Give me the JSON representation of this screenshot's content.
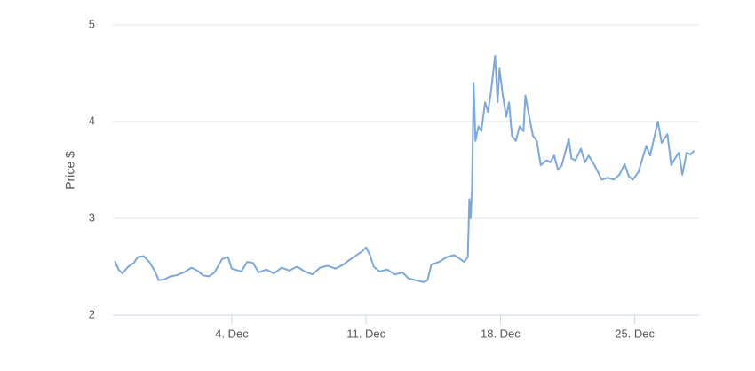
{
  "chart_data": {
    "type": "line",
    "y_label": "Price $",
    "xlim": [
      -2.2,
      28.35
    ],
    "ylim": [
      2,
      5
    ],
    "xticks": [
      {
        "value": 4,
        "label": "4. Dec"
      },
      {
        "value": 11,
        "label": "11. Dec"
      },
      {
        "value": 18,
        "label": "18. Dec"
      },
      {
        "value": 25,
        "label": "25. Dec"
      }
    ],
    "yticks": [
      2,
      3,
      4,
      5
    ],
    "grid": true,
    "series": [
      {
        "color": "#7ca8e0",
        "x": [
          -2.1,
          -1.9,
          -1.7,
          -1.4,
          -1.1,
          -0.9,
          -0.6,
          -0.3,
          0.0,
          0.2,
          0.5,
          0.8,
          1.1,
          1.5,
          1.9,
          2.2,
          2.5,
          2.8,
          3.1,
          3.5,
          3.8,
          4.0,
          4.5,
          4.8,
          5.1,
          5.4,
          5.8,
          6.2,
          6.6,
          7.0,
          7.4,
          7.8,
          8.2,
          8.6,
          9.0,
          9.4,
          9.8,
          10.2,
          10.5,
          10.8,
          11.0,
          11.2,
          11.4,
          11.7,
          12.1,
          12.5,
          12.9,
          13.2,
          13.6,
          14.0,
          14.2,
          14.4,
          14.8,
          15.2,
          15.6,
          15.9,
          16.1,
          16.3,
          16.38,
          16.45,
          16.52,
          16.6,
          16.7,
          16.85,
          17.0,
          17.2,
          17.35,
          17.5,
          17.72,
          17.85,
          17.95,
          18.1,
          18.3,
          18.45,
          18.6,
          18.8,
          19.0,
          19.2,
          19.3,
          19.5,
          19.7,
          19.9,
          20.1,
          20.4,
          20.6,
          20.8,
          21.0,
          21.2,
          21.56,
          21.7,
          21.9,
          22.2,
          22.4,
          22.6,
          22.9,
          23.27,
          23.6,
          23.9,
          24.2,
          24.47,
          24.7,
          24.9,
          25.2,
          25.4,
          25.6,
          25.8,
          26.2,
          26.4,
          26.7,
          26.9,
          27.1,
          27.3,
          27.48,
          27.7,
          27.9,
          28.1
        ],
        "values": [
          2.56,
          2.47,
          2.43,
          2.5,
          2.54,
          2.6,
          2.61,
          2.55,
          2.45,
          2.36,
          2.37,
          2.4,
          2.41,
          2.44,
          2.49,
          2.46,
          2.41,
          2.4,
          2.44,
          2.58,
          2.6,
          2.48,
          2.45,
          2.55,
          2.54,
          2.44,
          2.47,
          2.43,
          2.49,
          2.46,
          2.5,
          2.45,
          2.42,
          2.49,
          2.51,
          2.48,
          2.52,
          2.58,
          2.62,
          2.66,
          2.7,
          2.62,
          2.5,
          2.45,
          2.47,
          2.42,
          2.44,
          2.38,
          2.36,
          2.34,
          2.36,
          2.52,
          2.55,
          2.6,
          2.62,
          2.58,
          2.55,
          2.6,
          3.2,
          3.0,
          3.3,
          4.4,
          3.8,
          3.95,
          3.9,
          4.2,
          4.1,
          4.3,
          4.68,
          4.2,
          4.55,
          4.3,
          4.05,
          4.2,
          3.85,
          3.8,
          3.95,
          3.9,
          4.27,
          4.05,
          3.85,
          3.8,
          3.55,
          3.6,
          3.58,
          3.65,
          3.5,
          3.55,
          3.82,
          3.62,
          3.6,
          3.72,
          3.58,
          3.65,
          3.55,
          3.4,
          3.42,
          3.4,
          3.45,
          3.56,
          3.43,
          3.4,
          3.48,
          3.62,
          3.75,
          3.65,
          4.0,
          3.78,
          3.87,
          3.55,
          3.62,
          3.68,
          3.45,
          3.68,
          3.66,
          3.7
        ]
      }
    ]
  }
}
